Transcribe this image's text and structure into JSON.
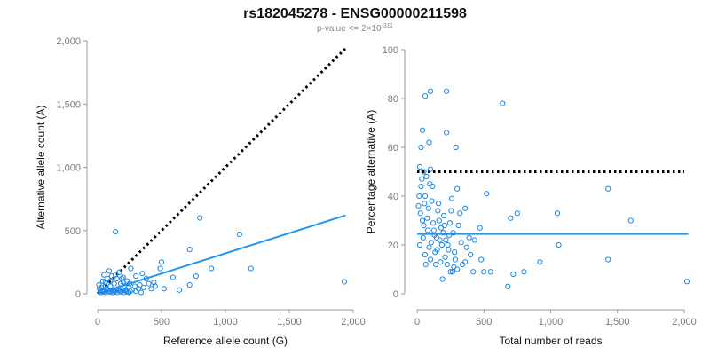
{
  "header": {
    "title": "rs182045278 - ENSG00000211598",
    "subtitle_main": "p-value <= 2×10",
    "subtitle_exp": "-311"
  },
  "colors": {
    "points": "#1e88e5",
    "fit": "#2196f3",
    "reference": "#000000",
    "axis": "#999999"
  },
  "chart_data": [
    {
      "type": "scatter",
      "xlabel": "Reference allele count (G)",
      "ylabel": "Alternative allele count (A)",
      "xlim": [
        0,
        2000
      ],
      "ylim": [
        0,
        2000
      ],
      "xticks": [
        0,
        500,
        1000,
        1500,
        2000
      ],
      "xtick_labels": [
        "0",
        "500",
        "1,000",
        "1,500",
        "2,000"
      ],
      "yticks": [
        0,
        500,
        1000,
        1500,
        2000
      ],
      "ytick_labels": [
        "0",
        "500",
        "1,000",
        "1,500",
        "2,000"
      ],
      "grid": false,
      "lines": [
        {
          "style": "dotted",
          "color": "#000000",
          "x": [
            0,
            1940
          ],
          "y": [
            0,
            1940
          ]
        },
        {
          "style": "solid",
          "color": "#2196f3",
          "x": [
            0,
            1940
          ],
          "y": [
            0,
            620
          ]
        }
      ],
      "points": [
        [
          140,
          490
        ],
        [
          800,
          600
        ],
        [
          1110,
          470
        ],
        [
          1200,
          200
        ],
        [
          1930,
          95
        ],
        [
          720,
          350
        ],
        [
          590,
          130
        ],
        [
          640,
          30
        ],
        [
          720,
          70
        ],
        [
          770,
          140
        ],
        [
          890,
          200
        ],
        [
          490,
          200
        ],
        [
          500,
          250
        ],
        [
          440,
          90
        ],
        [
          420,
          40
        ],
        [
          380,
          120
        ],
        [
          330,
          70
        ],
        [
          300,
          140
        ],
        [
          350,
          160
        ],
        [
          260,
          200
        ],
        [
          230,
          100
        ],
        [
          210,
          60
        ],
        [
          190,
          120
        ],
        [
          170,
          170
        ],
        [
          150,
          120
        ],
        [
          130,
          80
        ],
        [
          110,
          140
        ],
        [
          90,
          180
        ],
        [
          80,
          120
        ],
        [
          60,
          60
        ],
        [
          50,
          150
        ],
        [
          40,
          100
        ],
        [
          20,
          30
        ],
        [
          30,
          50
        ],
        [
          70,
          40
        ],
        [
          100,
          60
        ],
        [
          120,
          30
        ],
        [
          160,
          40
        ],
        [
          180,
          80
        ],
        [
          200,
          90
        ],
        [
          240,
          50
        ],
        [
          270,
          30
        ],
        [
          290,
          60
        ],
        [
          320,
          40
        ],
        [
          360,
          50
        ],
        [
          400,
          80
        ],
        [
          450,
          60
        ],
        [
          520,
          40
        ],
        [
          25,
          10
        ],
        [
          35,
          20
        ],
        [
          45,
          15
        ],
        [
          55,
          25
        ],
        [
          65,
          10
        ],
        [
          75,
          30
        ],
        [
          85,
          20
        ],
        [
          95,
          15
        ],
        [
          105,
          25
        ],
        [
          115,
          10
        ],
        [
          125,
          20
        ],
        [
          135,
          15
        ],
        [
          145,
          30
        ],
        [
          155,
          10
        ],
        [
          165,
          25
        ],
        [
          175,
          20
        ],
        [
          185,
          15
        ],
        [
          195,
          30
        ],
        [
          205,
          10
        ],
        [
          215,
          25
        ],
        [
          225,
          20
        ],
        [
          235,
          15
        ],
        [
          245,
          10
        ],
        [
          255,
          20
        ],
        [
          15,
          40
        ],
        [
          10,
          70
        ],
        [
          60,
          90
        ],
        [
          200,
          130
        ],
        [
          250,
          80
        ],
        [
          300,
          20
        ],
        [
          340,
          10
        ],
        [
          100,
          100
        ],
        [
          140,
          150
        ],
        [
          220,
          30
        ]
      ]
    },
    {
      "type": "scatter",
      "xlabel": "Total number of reads",
      "ylabel": "Percentage alternative (A)",
      "xlim": [
        0,
        2000
      ],
      "ylim": [
        0,
        100
      ],
      "xticks": [
        0,
        500,
        1000,
        1500,
        2000
      ],
      "xtick_labels": [
        "0",
        "500",
        "1,000",
        "1,500",
        "2,000"
      ],
      "yticks": [
        0,
        20,
        40,
        60,
        80,
        100
      ],
      "ytick_labels": [
        "0",
        "20",
        "40",
        "60",
        "80",
        "100"
      ],
      "grid": false,
      "lines": [
        {
          "style": "dotted",
          "color": "#000000",
          "x": [
            0,
            2000
          ],
          "y": [
            50,
            50
          ]
        },
        {
          "style": "solid",
          "color": "#2196f3",
          "x": [
            0,
            2030
          ],
          "y": [
            24.5,
            24.5
          ]
        }
      ],
      "points": [
        [
          60,
          81
        ],
        [
          100,
          83
        ],
        [
          220,
          83
        ],
        [
          640,
          78
        ],
        [
          220,
          66
        ],
        [
          40,
          67
        ],
        [
          90,
          62
        ],
        [
          290,
          60
        ],
        [
          30,
          60
        ],
        [
          20,
          52
        ],
        [
          50,
          50
        ],
        [
          70,
          48
        ],
        [
          100,
          51
        ],
        [
          30,
          44
        ],
        [
          60,
          40
        ],
        [
          110,
          38
        ],
        [
          160,
          37
        ],
        [
          200,
          32
        ],
        [
          260,
          39
        ],
        [
          300,
          43
        ],
        [
          320,
          33
        ],
        [
          360,
          35
        ],
        [
          520,
          41
        ],
        [
          470,
          27
        ],
        [
          10,
          36
        ],
        [
          40,
          30
        ],
        [
          80,
          26
        ],
        [
          130,
          24
        ],
        [
          170,
          22
        ],
        [
          230,
          20
        ],
        [
          270,
          25
        ],
        [
          330,
          21
        ],
        [
          390,
          23
        ],
        [
          430,
          22
        ],
        [
          480,
          14
        ],
        [
          500,
          9
        ],
        [
          550,
          9
        ],
        [
          20,
          20
        ],
        [
          60,
          16
        ],
        [
          100,
          14
        ],
        [
          140,
          12
        ],
        [
          190,
          6
        ],
        [
          250,
          9
        ],
        [
          300,
          10
        ],
        [
          360,
          13
        ],
        [
          420,
          9
        ],
        [
          700,
          31
        ],
        [
          750,
          33
        ],
        [
          1050,
          33
        ],
        [
          1430,
          43
        ],
        [
          1600,
          30
        ],
        [
          1060,
          20
        ],
        [
          920,
          13
        ],
        [
          1430,
          14
        ],
        [
          680,
          3
        ],
        [
          720,
          8
        ],
        [
          800,
          9
        ],
        [
          2020,
          5
        ],
        [
          50,
          28
        ],
        [
          90,
          19
        ],
        [
          120,
          29
        ],
        [
          150,
          18
        ],
        [
          180,
          27
        ],
        [
          210,
          15
        ],
        [
          240,
          24
        ],
        [
          280,
          17
        ],
        [
          310,
          28
        ],
        [
          340,
          12
        ],
        [
          370,
          19
        ],
        [
          400,
          16
        ],
        [
          25,
          33
        ],
        [
          45,
          23
        ],
        [
          75,
          31
        ],
        [
          105,
          21
        ],
        [
          135,
          17
        ],
        [
          165,
          30
        ],
        [
          195,
          25
        ],
        [
          225,
          12
        ],
        [
          255,
          34
        ],
        [
          285,
          14
        ],
        [
          15,
          40
        ],
        [
          35,
          47
        ],
        [
          55,
          37
        ],
        [
          85,
          35
        ],
        [
          115,
          44
        ],
        [
          145,
          23
        ],
        [
          175,
          13
        ],
        [
          205,
          28
        ],
        [
          235,
          18
        ],
        [
          265,
          9
        ],
        [
          65,
          12
        ],
        [
          95,
          45
        ],
        [
          125,
          26
        ],
        [
          155,
          34
        ],
        [
          185,
          20
        ],
        [
          215,
          22
        ],
        [
          245,
          29
        ],
        [
          275,
          11
        ]
      ]
    }
  ]
}
